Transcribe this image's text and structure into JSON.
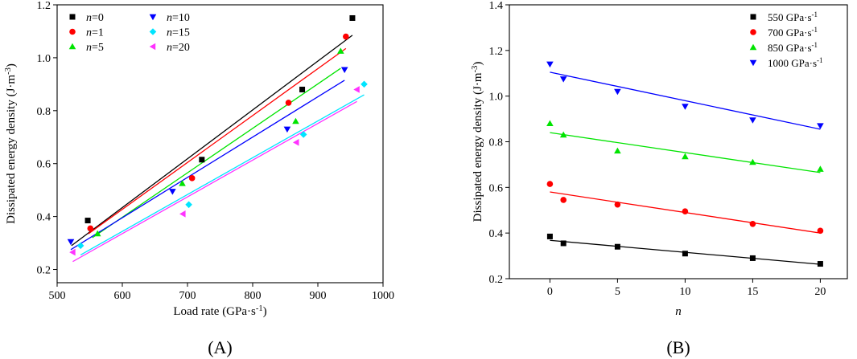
{
  "chart_data": [
    {
      "type": "scatter",
      "panel_label": "(A)",
      "xlabel": "Load rate (GPa·s⁻¹)",
      "ylabel": "Dissipated energy density (J·m⁻³)",
      "xlim": [
        500,
        1000
      ],
      "ylim": [
        0.15,
        1.2
      ],
      "xticks": [
        500,
        600,
        700,
        800,
        900,
        1000
      ],
      "yticks": [
        0.2,
        0.4,
        0.6,
        0.8,
        1.0,
        1.2
      ],
      "legend_position": "top-left",
      "series": [
        {
          "name": "n=0",
          "n_value": "0",
          "color": "#000000",
          "marker": "square",
          "x": [
            547,
            722,
            876,
            953
          ],
          "y": [
            0.385,
            0.615,
            0.88,
            1.15
          ],
          "fit": {
            "x": [
              522,
              953
            ],
            "y": [
              0.29,
              1.085
            ]
          }
        },
        {
          "name": "n=1",
          "n_value": "1",
          "color": "#ff0000",
          "marker": "circle",
          "x": [
            551,
            707,
            855,
            943
          ],
          "y": [
            0.355,
            0.545,
            0.83,
            1.08
          ],
          "fit": {
            "x": [
              548,
              943
            ],
            "y": [
              0.335,
              1.035
            ]
          }
        },
        {
          "name": "n=5",
          "n_value": "5",
          "color": "#00e400",
          "marker": "triangle-up",
          "x": [
            562,
            692,
            866,
            935
          ],
          "y": [
            0.335,
            0.525,
            0.76,
            1.025
          ],
          "fit": {
            "x": [
              554,
              935
            ],
            "y": [
              0.32,
              0.96
            ]
          }
        },
        {
          "name": "n=10",
          "n_value": "10",
          "color": "#0000ff",
          "marker": "triangle-down",
          "x": [
            521,
            677,
            853,
            941
          ],
          "y": [
            0.305,
            0.495,
            0.73,
            0.955
          ],
          "fit": {
            "x": [
              521,
              941
            ],
            "y": [
              0.275,
              0.915
            ]
          }
        },
        {
          "name": "n=15",
          "n_value": "15",
          "color": "#00e5ff",
          "marker": "diamond",
          "x": [
            536,
            702,
            878,
            971
          ],
          "y": [
            0.29,
            0.445,
            0.71,
            0.9
          ],
          "fit": {
            "x": [
              536,
              971
            ],
            "y": [
              0.255,
              0.86
            ]
          }
        },
        {
          "name": "n=20",
          "n_value": "20",
          "color": "#ff33ff",
          "marker": "triangle-left",
          "x": [
            524,
            693,
            867,
            960
          ],
          "y": [
            0.265,
            0.41,
            0.68,
            0.88
          ],
          "fit": {
            "x": [
              524,
              960
            ],
            "y": [
              0.23,
              0.835
            ]
          }
        }
      ]
    },
    {
      "type": "scatter",
      "panel_label": "(B)",
      "xlabel": "n",
      "ylabel": "Dissipated energy density (J·m⁻³)",
      "xlim": [
        -3,
        22
      ],
      "ylim": [
        0.2,
        1.4
      ],
      "xticks": [
        0,
        5,
        10,
        15,
        20
      ],
      "yticks": [
        0.2,
        0.4,
        0.6,
        0.8,
        1.0,
        1.2,
        1.4
      ],
      "legend_position": "top-right",
      "series": [
        {
          "name": "550 GPa·s⁻¹",
          "label_main": "550 GPa·s",
          "label_sup": "-1",
          "color": "#000000",
          "marker": "square",
          "x": [
            0,
            1,
            5,
            10,
            15,
            20
          ],
          "y": [
            0.385,
            0.355,
            0.34,
            0.31,
            0.29,
            0.265
          ],
          "fit": {
            "x": [
              0,
              20
            ],
            "y": [
              0.368,
              0.263
            ]
          }
        },
        {
          "name": "700 GPa·s⁻¹",
          "label_main": "700 GPa·s",
          "label_sup": "-1",
          "color": "#ff0000",
          "marker": "circle",
          "x": [
            0,
            1,
            5,
            10,
            15,
            20
          ],
          "y": [
            0.615,
            0.545,
            0.525,
            0.495,
            0.44,
            0.41
          ],
          "fit": {
            "x": [
              0,
              20
            ],
            "y": [
              0.58,
              0.4
            ]
          }
        },
        {
          "name": "850 GPa·s⁻¹",
          "label_main": "850 GPa·s",
          "label_sup": "-1",
          "color": "#00e400",
          "marker": "triangle-up",
          "x": [
            0,
            1,
            5,
            10,
            15,
            20
          ],
          "y": [
            0.88,
            0.83,
            0.76,
            0.735,
            0.71,
            0.68
          ],
          "fit": {
            "x": [
              0,
              20
            ],
            "y": [
              0.84,
              0.665
            ]
          }
        },
        {
          "name": "1000 GPa·s⁻¹",
          "label_main": "1000 GPa·s",
          "label_sup": "-1",
          "color": "#0000ff",
          "marker": "triangle-down",
          "x": [
            0,
            1,
            5,
            10,
            15,
            20
          ],
          "y": [
            1.14,
            1.075,
            1.02,
            0.955,
            0.895,
            0.87
          ],
          "fit": {
            "x": [
              0,
              20
            ],
            "y": [
              1.105,
              0.855
            ]
          }
        }
      ]
    }
  ]
}
